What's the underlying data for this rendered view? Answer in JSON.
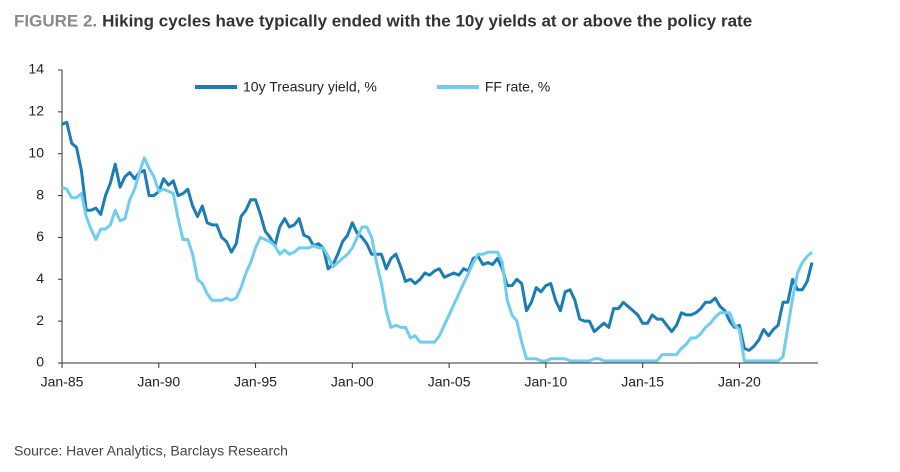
{
  "chart_data": {
    "type": "line",
    "figure_label": "FIGURE 2.",
    "title": "Hiking cycles have typically ended with the 10y yields at or above the policy rate",
    "source": "Source: Haver Analytics, Barclays Research",
    "categories": [
      "Jan-85",
      null,
      null,
      null,
      null,
      null,
      null,
      null,
      null,
      null,
      null,
      null,
      null,
      null,
      null,
      null,
      null,
      null,
      null,
      null,
      "Jan-90",
      null,
      null,
      null,
      null,
      null,
      null,
      null,
      null,
      null,
      null,
      null,
      null,
      null,
      null,
      null,
      null,
      null,
      null,
      null,
      "Jan-95",
      null,
      null,
      null,
      null,
      null,
      null,
      null,
      null,
      null,
      null,
      null,
      null,
      null,
      null,
      null,
      null,
      null,
      null,
      null,
      "Jan-00",
      null,
      null,
      null,
      null,
      null,
      null,
      null,
      null,
      null,
      null,
      null,
      null,
      null,
      null,
      null,
      null,
      null,
      null,
      null,
      "Jan-05",
      null,
      null,
      null,
      null,
      null,
      null,
      null,
      null,
      null,
      null,
      null,
      null,
      null,
      null,
      null,
      null,
      null,
      null,
      null,
      "Jan-10",
      null,
      null,
      null,
      null,
      null,
      null,
      null,
      null,
      null,
      null,
      null,
      null,
      null,
      null,
      null,
      null,
      null,
      null,
      null,
      "Jan-15",
      null,
      null,
      null,
      null,
      null,
      null,
      null,
      null,
      null,
      null,
      null,
      null,
      null,
      null,
      null,
      null,
      null,
      null,
      null,
      "Jan-20",
      null,
      null,
      null,
      null,
      null,
      null,
      null,
      null,
      null,
      null,
      null,
      null,
      null,
      null,
      null
    ],
    "series": [
      {
        "name": "10y Treasury yield, %",
        "color": "#1b7db3",
        "values": [
          11.4,
          11.5,
          10.5,
          10.3,
          9.2,
          7.3,
          7.3,
          7.4,
          7.1,
          8.0,
          8.6,
          9.5,
          8.4,
          8.9,
          9.1,
          8.8,
          9.1,
          9.2,
          8.0,
          8.0,
          8.2,
          8.8,
          8.5,
          8.7,
          8.0,
          8.1,
          8.3,
          7.5,
          7.0,
          7.5,
          6.7,
          6.6,
          6.6,
          6.0,
          5.8,
          5.3,
          5.7,
          7.0,
          7.3,
          7.8,
          7.8,
          7.1,
          6.3,
          6.0,
          5.6,
          6.5,
          6.9,
          6.5,
          6.6,
          6.9,
          6.1,
          6.0,
          5.6,
          5.7,
          5.5,
          4.5,
          4.7,
          5.2,
          5.8,
          6.1,
          6.7,
          6.2,
          6.0,
          5.7,
          5.2,
          5.2,
          5.2,
          4.5,
          5.0,
          5.2,
          4.6,
          3.9,
          4.0,
          3.8,
          4.0,
          4.3,
          4.2,
          4.4,
          4.5,
          4.1,
          4.2,
          4.3,
          4.2,
          4.5,
          4.4,
          5.0,
          5.1,
          4.7,
          4.8,
          4.7,
          5.0,
          4.5,
          3.7,
          3.7,
          4.0,
          3.8,
          2.5,
          2.9,
          3.6,
          3.4,
          3.7,
          3.8,
          3.0,
          2.5,
          3.4,
          3.5,
          3.0,
          2.1,
          2.0,
          2.0,
          1.5,
          1.7,
          1.9,
          1.7,
          2.6,
          2.6,
          2.9,
          2.7,
          2.5,
          2.3,
          1.9,
          1.9,
          2.3,
          2.1,
          2.1,
          1.8,
          1.5,
          1.8,
          2.4,
          2.3,
          2.3,
          2.4,
          2.6,
          2.9,
          2.9,
          3.1,
          2.7,
          2.5,
          2.0,
          1.7,
          1.8,
          0.7,
          0.6,
          0.8,
          1.1,
          1.6,
          1.3,
          1.6,
          1.8,
          2.9,
          2.9,
          4.0,
          3.5,
          3.5,
          3.9,
          4.8
        ]
      },
      {
        "name": "FF rate, %",
        "color": "#6fcdf0",
        "values": [
          8.4,
          8.3,
          7.9,
          7.9,
          8.1,
          7.0,
          6.4,
          5.9,
          6.4,
          6.4,
          6.6,
          7.3,
          6.8,
          6.9,
          7.8,
          8.3,
          9.1,
          9.8,
          9.3,
          8.9,
          8.2,
          8.3,
          8.2,
          8.1,
          6.9,
          5.9,
          5.9,
          5.2,
          4.0,
          3.8,
          3.3,
          3.0,
          3.0,
          3.0,
          3.1,
          3.0,
          3.1,
          3.6,
          4.3,
          4.8,
          5.5,
          6.0,
          5.9,
          5.8,
          5.6,
          5.2,
          5.4,
          5.2,
          5.3,
          5.5,
          5.5,
          5.5,
          5.6,
          5.5,
          5.5,
          5.1,
          4.6,
          4.8,
          5.0,
          5.2,
          5.5,
          6.0,
          6.5,
          6.5,
          6.0,
          4.8,
          3.8,
          2.5,
          1.7,
          1.8,
          1.7,
          1.7,
          1.2,
          1.3,
          1.0,
          1.0,
          1.0,
          1.0,
          1.3,
          1.8,
          2.3,
          2.8,
          3.3,
          3.8,
          4.3,
          4.8,
          5.2,
          5.2,
          5.3,
          5.3,
          5.3,
          4.8,
          3.0,
          2.3,
          2.0,
          1.0,
          0.2,
          0.2,
          0.2,
          0.1,
          0.1,
          0.2,
          0.2,
          0.2,
          0.2,
          0.1,
          0.1,
          0.1,
          0.1,
          0.1,
          0.2,
          0.2,
          0.1,
          0.1,
          0.1,
          0.1,
          0.1,
          0.1,
          0.1,
          0.1,
          0.1,
          0.1,
          0.1,
          0.1,
          0.4,
          0.4,
          0.4,
          0.4,
          0.7,
          0.9,
          1.2,
          1.2,
          1.4,
          1.7,
          1.9,
          2.2,
          2.4,
          2.4,
          2.4,
          1.8,
          1.6,
          0.1,
          0.1,
          0.1,
          0.1,
          0.1,
          0.1,
          0.1,
          0.1,
          0.3,
          1.7,
          3.1,
          4.3,
          4.8,
          5.1,
          5.3
        ]
      }
    ],
    "ylim": [
      0,
      14
    ],
    "yticks": [
      0,
      2,
      4,
      6,
      8,
      10,
      12,
      14
    ],
    "grid": false,
    "legend": "top"
  }
}
